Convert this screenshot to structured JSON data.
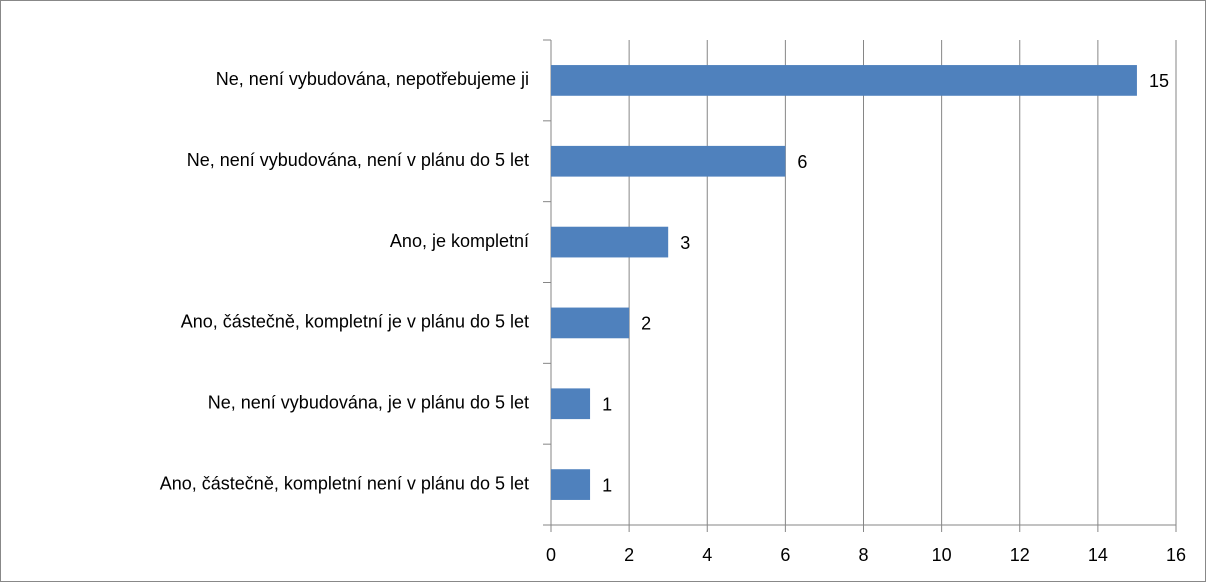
{
  "chart_data": {
    "type": "bar",
    "orientation": "horizontal",
    "categories": [
      "Ne, není vybudována, nepotřebujeme ji",
      "Ne, není vybudována, není v plánu do 5 let",
      "Ano, je kompletní",
      "Ano, částečně, kompletní je v plánu do 5 let",
      "Ne, není vybudována, je v plánu do 5 let",
      "Ano, částečně, kompletní není v plánu do 5 let"
    ],
    "values": [
      15,
      6,
      3,
      2,
      1,
      1
    ],
    "color": "#4f81bd",
    "xlim": [
      0,
      16
    ],
    "xticks": [
      0,
      2,
      4,
      6,
      8,
      10,
      12,
      14,
      16
    ],
    "grid": true
  }
}
